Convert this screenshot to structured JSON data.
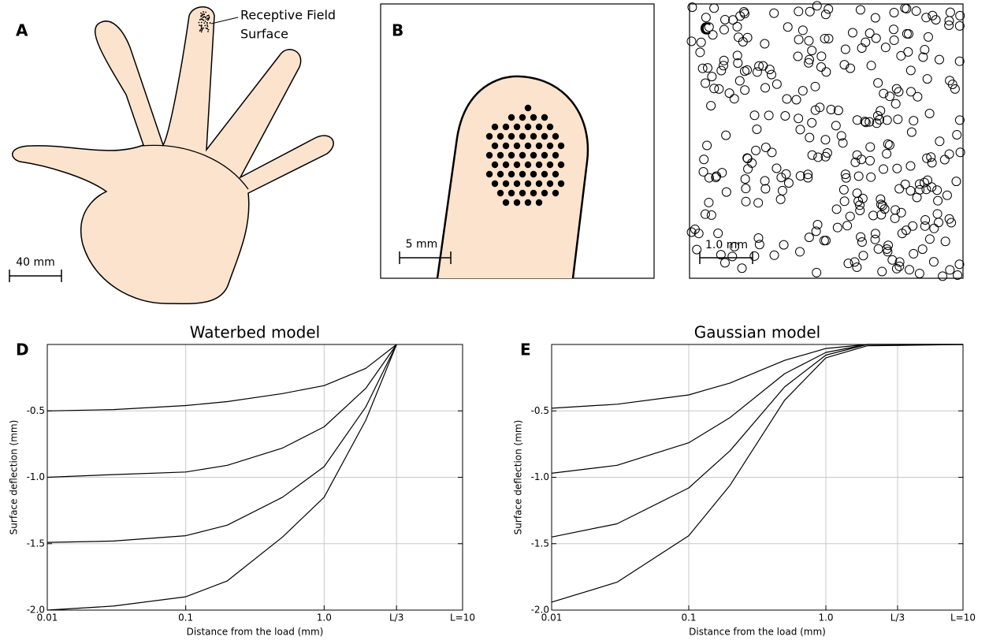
{
  "figure": {
    "panel_a": {
      "label": "A",
      "annotation": [
        "Receptive Field",
        "Surface"
      ],
      "scale_bar": "40 mm"
    },
    "panel_b": {
      "label": "B",
      "scale_bar": "5 mm"
    },
    "panel_c": {
      "label": "C",
      "scale_bar": "1.0 mm"
    }
  },
  "chart_data": [
    {
      "type": "line",
      "panel_label": "D",
      "title": "Waterbed model",
      "x_label": "Distance from the load (mm)",
      "y_label": "Surface deflection (mm)",
      "xscale": "log",
      "grid": true,
      "xlim": [
        0.01,
        10
      ],
      "xticks": [
        0.01,
        0.1,
        {
          "value": 1,
          "label": "1.0"
        },
        {
          "value": 3.333,
          "label": "L/3"
        },
        {
          "value": 10,
          "label": "L=10"
        }
      ],
      "ylim": [
        -2,
        0
      ],
      "yticks": [
        {
          "value": -2,
          "label": "-2.0"
        },
        -1.5,
        {
          "value": -1,
          "label": "-1.0"
        },
        -0.5
      ],
      "x": [
        0.01,
        0.03,
        0.1,
        0.2,
        0.5,
        1,
        2,
        3.333
      ],
      "series": [
        {
          "color": "#000000",
          "values": [
            -0.5,
            -0.49,
            -0.46,
            -0.43,
            -0.37,
            -0.31,
            -0.18,
            0
          ]
        },
        {
          "color": "#000000",
          "values": [
            -1.0,
            -0.98,
            -0.96,
            -0.91,
            -0.78,
            -0.62,
            -0.33,
            0
          ]
        },
        {
          "color": "#000000",
          "values": [
            -1.49,
            -1.48,
            -1.44,
            -1.36,
            -1.15,
            -0.92,
            -0.47,
            0
          ]
        },
        {
          "color": "#000000",
          "values": [
            -2.0,
            -1.97,
            -1.9,
            -1.78,
            -1.45,
            -1.15,
            -0.57,
            0
          ]
        }
      ]
    },
    {
      "type": "line",
      "panel_label": "E",
      "title": "Gaussian model",
      "x_label": "Distance from the load (mm)",
      "y_label": "Surface deflection (mm)",
      "xscale": "log",
      "grid": true,
      "xlim": [
        0.01,
        10
      ],
      "xticks": [
        0.01,
        0.1,
        {
          "value": 1,
          "label": "1.0"
        },
        {
          "value": 3.333,
          "label": "L/3"
        },
        {
          "value": 10,
          "label": "L=10"
        }
      ],
      "ylim": [
        -2,
        0
      ],
      "yticks": [
        {
          "value": -2,
          "label": "-2.0"
        },
        -1.5,
        {
          "value": -1,
          "label": "-1.0"
        },
        -0.5
      ],
      "x": [
        0.01,
        0.03,
        0.1,
        0.2,
        0.5,
        1,
        2,
        10
      ],
      "series": [
        {
          "color": "#000000",
          "values": [
            -0.48,
            -0.45,
            -0.38,
            -0.29,
            -0.12,
            -0.03,
            0,
            0
          ]
        },
        {
          "color": "#000000",
          "values": [
            -0.97,
            -0.91,
            -0.74,
            -0.55,
            -0.22,
            -0.06,
            0,
            0
          ]
        },
        {
          "color": "#000000",
          "values": [
            -1.45,
            -1.35,
            -1.08,
            -0.8,
            -0.32,
            -0.08,
            0,
            0
          ]
        },
        {
          "color": "#000000",
          "values": [
            -1.94,
            -1.79,
            -1.44,
            -1.06,
            -0.42,
            -0.1,
            -0.01,
            0
          ]
        }
      ]
    }
  ]
}
